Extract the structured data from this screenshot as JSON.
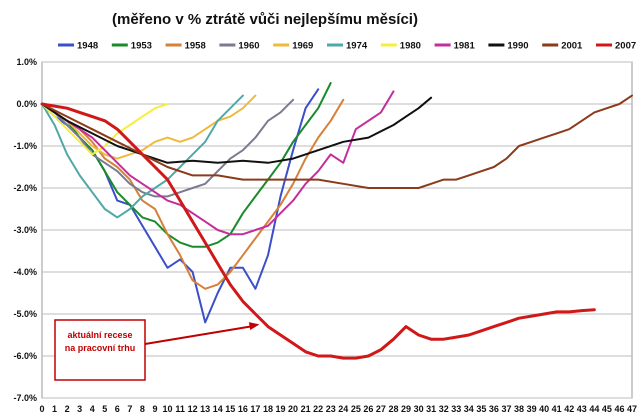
{
  "chart_data": {
    "type": "line",
    "title": "(měřeno v % ztrátě vůči nejlepšímu měsíci)",
    "x": [
      0,
      1,
      2,
      3,
      4,
      5,
      6,
      7,
      8,
      9,
      10,
      11,
      12,
      13,
      14,
      15,
      16,
      17,
      18,
      19,
      20,
      21,
      22,
      23,
      24,
      25,
      26,
      27,
      28,
      29,
      30,
      31,
      32,
      33,
      34,
      35,
      36,
      37,
      38,
      39,
      40,
      41,
      42,
      43,
      44,
      45,
      46,
      47
    ],
    "xlim": [
      0,
      47
    ],
    "ylim": [
      -7.0,
      1.0
    ],
    "yticks": [
      1.0,
      0.0,
      -1.0,
      -2.0,
      -3.0,
      -4.0,
      -5.0,
      -6.0,
      -7.0
    ],
    "ytick_labels": [
      "1.0%",
      "0.0%",
      "-1.0%",
      "-2.0%",
      "-3.0%",
      "-4.0%",
      "-5.0%",
      "-6.0%",
      "-7.0%"
    ],
    "grid": true,
    "legend_position": "top",
    "annotation": {
      "lines": [
        "aktuální recese",
        "na pracovní trhu"
      ],
      "points_to_x": 17,
      "points_to_y": -5.2
    },
    "series": [
      {
        "name": "1948",
        "color": "#3b4fc8",
        "width": 2,
        "x": [
          0,
          1,
          2,
          3,
          4,
          5,
          6,
          7,
          8,
          9,
          10,
          11,
          12,
          13,
          14,
          15,
          16,
          17,
          18,
          19,
          20,
          21,
          22
        ],
        "y": [
          0,
          -0.3,
          -0.5,
          -0.8,
          -1.1,
          -1.6,
          -2.3,
          -2.4,
          -2.9,
          -3.4,
          -3.9,
          -3.7,
          -4.0,
          -5.2,
          -4.5,
          -3.9,
          -3.9,
          -4.4,
          -3.6,
          -2.2,
          -1.1,
          -0.1,
          0.35
        ]
      },
      {
        "name": "1953",
        "color": "#1a8a2a",
        "width": 2,
        "x": [
          0,
          1,
          2,
          3,
          4,
          5,
          6,
          7,
          8,
          9,
          10,
          11,
          12,
          13,
          14,
          15,
          16,
          17,
          18,
          19,
          20,
          21,
          22,
          23
        ],
        "y": [
          0,
          -0.2,
          -0.4,
          -0.8,
          -1.1,
          -1.6,
          -2.1,
          -2.4,
          -2.7,
          -2.8,
          -3.1,
          -3.3,
          -3.4,
          -3.4,
          -3.3,
          -3.1,
          -2.6,
          -2.2,
          -1.8,
          -1.4,
          -0.9,
          -0.5,
          -0.1,
          0.5
        ]
      },
      {
        "name": "1958",
        "color": "#d6803a",
        "width": 2,
        "x": [
          0,
          1,
          2,
          3,
          4,
          5,
          6,
          7,
          8,
          9,
          10,
          11,
          12,
          13,
          14,
          15,
          16,
          17,
          18,
          19,
          20,
          21,
          22,
          23,
          24
        ],
        "y": [
          0,
          -0.2,
          -0.4,
          -0.6,
          -0.9,
          -1.3,
          -1.5,
          -1.8,
          -2.3,
          -2.5,
          -3.1,
          -3.6,
          -4.2,
          -4.4,
          -4.3,
          -4.0,
          -3.6,
          -3.2,
          -2.8,
          -2.4,
          -1.9,
          -1.3,
          -0.8,
          -0.4,
          0.1
        ]
      },
      {
        "name": "1960",
        "color": "#7a7a90",
        "width": 2,
        "x": [
          0,
          1,
          2,
          3,
          4,
          5,
          6,
          7,
          8,
          9,
          10,
          11,
          12,
          13,
          14,
          15,
          16,
          17,
          18,
          19,
          20
        ],
        "y": [
          0,
          -0.2,
          -0.5,
          -0.8,
          -1.2,
          -1.4,
          -1.6,
          -1.9,
          -2.1,
          -2.2,
          -2.2,
          -2.1,
          -2.0,
          -1.9,
          -1.6,
          -1.3,
          -1.1,
          -0.8,
          -0.4,
          -0.2,
          0.1
        ]
      },
      {
        "name": "1969",
        "color": "#f0b93c",
        "width": 2,
        "x": [
          0,
          1,
          2,
          3,
          4,
          5,
          6,
          7,
          8,
          9,
          10,
          11,
          12,
          13,
          14,
          15,
          16,
          17
        ],
        "y": [
          0,
          -0.2,
          -0.4,
          -0.7,
          -1.0,
          -1.2,
          -1.3,
          -1.2,
          -1.1,
          -0.9,
          -0.8,
          -0.9,
          -0.8,
          -0.6,
          -0.4,
          -0.3,
          -0.1,
          0.2
        ]
      },
      {
        "name": "1974",
        "color": "#4fa8a8",
        "width": 2,
        "x": [
          0,
          1,
          2,
          3,
          4,
          5,
          6,
          7,
          8,
          9,
          10,
          11,
          12,
          13,
          14,
          15,
          16
        ],
        "y": [
          0,
          -0.5,
          -1.2,
          -1.7,
          -2.1,
          -2.5,
          -2.7,
          -2.5,
          -2.2,
          -2.0,
          -1.8,
          -1.5,
          -1.2,
          -0.9,
          -0.4,
          -0.1,
          0.2
        ]
      },
      {
        "name": "1980",
        "color": "#f5ef3a",
        "width": 2,
        "x": [
          0,
          1,
          2,
          3,
          4,
          5,
          6,
          7,
          8,
          9,
          10
        ],
        "y": [
          0,
          -0.3,
          -0.6,
          -0.9,
          -1.2,
          -1.0,
          -0.7,
          -0.5,
          -0.3,
          -0.1,
          0
        ]
      },
      {
        "name": "1981",
        "color": "#c42d9a",
        "width": 2,
        "x": [
          0,
          1,
          2,
          3,
          4,
          5,
          6,
          7,
          8,
          9,
          10,
          11,
          12,
          13,
          14,
          15,
          16,
          17,
          18,
          19,
          20,
          21,
          22,
          23,
          24,
          25,
          26,
          27,
          28
        ],
        "y": [
          0,
          -0.2,
          -0.4,
          -0.6,
          -0.8,
          -1.1,
          -1.4,
          -1.7,
          -1.9,
          -2.1,
          -2.3,
          -2.4,
          -2.6,
          -2.8,
          -3.0,
          -3.1,
          -3.1,
          -3.0,
          -2.9,
          -2.6,
          -2.3,
          -1.9,
          -1.6,
          -1.2,
          -1.4,
          -0.6,
          -0.4,
          -0.2,
          0.3
        ]
      },
      {
        "name": "1990",
        "color": "#111111",
        "width": 2,
        "x": [
          0,
          2,
          4,
          6,
          8,
          10,
          12,
          14,
          16,
          18,
          20,
          22,
          24,
          26,
          28,
          29,
          30,
          31
        ],
        "y": [
          0,
          -0.4,
          -0.7,
          -1.0,
          -1.2,
          -1.4,
          -1.35,
          -1.4,
          -1.35,
          -1.4,
          -1.3,
          -1.1,
          -0.9,
          -0.8,
          -0.5,
          -0.3,
          -0.1,
          0.15
        ]
      },
      {
        "name": "2001",
        "color": "#8b3a1a",
        "width": 2,
        "x": [
          0,
          2,
          4,
          6,
          8,
          10,
          12,
          14,
          16,
          18,
          20,
          22,
          24,
          26,
          28,
          30,
          31,
          32,
          33,
          34,
          35,
          36,
          37,
          38,
          39,
          40,
          41,
          42,
          43,
          44,
          45,
          46,
          47
        ],
        "y": [
          0,
          -0.3,
          -0.6,
          -0.9,
          -1.2,
          -1.5,
          -1.7,
          -1.7,
          -1.8,
          -1.8,
          -1.8,
          -1.8,
          -1.9,
          -2.0,
          -2.0,
          -2.0,
          -1.9,
          -1.8,
          -1.8,
          -1.7,
          -1.6,
          -1.5,
          -1.3,
          -1.0,
          -0.9,
          -0.8,
          -0.7,
          -0.6,
          -0.4,
          -0.2,
          -0.1,
          0,
          0.2
        ]
      },
      {
        "name": "2007",
        "color": "#d01818",
        "width": 3,
        "x": [
          0,
          1,
          2,
          3,
          4,
          5,
          6,
          7,
          8,
          9,
          10,
          11,
          12,
          13,
          14,
          15,
          16,
          17,
          18,
          19,
          20,
          21,
          22,
          23,
          24,
          25,
          26,
          27,
          28,
          29,
          30,
          31,
          32,
          33,
          34,
          35,
          36,
          37,
          38,
          39,
          40,
          41,
          42,
          43,
          44
        ],
        "y": [
          0,
          -0.05,
          -0.1,
          -0.2,
          -0.3,
          -0.4,
          -0.6,
          -0.9,
          -1.2,
          -1.5,
          -1.8,
          -2.3,
          -2.8,
          -3.3,
          -3.8,
          -4.3,
          -4.7,
          -5.0,
          -5.3,
          -5.5,
          -5.7,
          -5.9,
          -6.0,
          -6.0,
          -6.05,
          -6.05,
          -6.0,
          -5.85,
          -5.6,
          -5.3,
          -5.5,
          -5.6,
          -5.6,
          -5.55,
          -5.5,
          -5.4,
          -5.3,
          -5.2,
          -5.1,
          -5.05,
          -5.0,
          -4.95,
          -4.95,
          -4.92,
          -4.9
        ]
      }
    ]
  }
}
